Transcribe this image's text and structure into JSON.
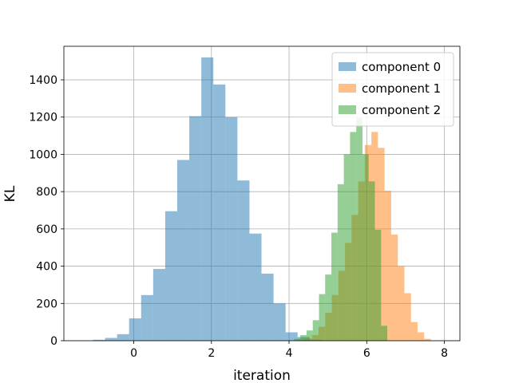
{
  "chart_data": {
    "type": "bar",
    "subtype": "overlapping-histogram",
    "title": "",
    "xlabel": "iteration",
    "ylabel": "KL",
    "xlim": [
      -1.8,
      8.4
    ],
    "ylim": [
      0,
      1580
    ],
    "xticks": [
      "0",
      "2",
      "4",
      "6",
      "8"
    ],
    "yticks": [
      "0",
      "200",
      "400",
      "600",
      "800",
      "1000",
      "1200",
      "1400"
    ],
    "grid": true,
    "legend_position": "top-right",
    "series": [
      {
        "name": "component 0",
        "color": "#1f77b4",
        "opacity": 0.5,
        "bin_edges": [
          -1.05,
          -0.74,
          -0.43,
          -0.12,
          0.19,
          0.5,
          0.81,
          1.12,
          1.43,
          1.74,
          2.05,
          2.36,
          2.67,
          2.98,
          3.29,
          3.6,
          3.91,
          4.22,
          4.53,
          4.84
        ],
        "counts": [
          5,
          15,
          35,
          120,
          245,
          385,
          695,
          970,
          1205,
          1520,
          1375,
          1200,
          860,
          575,
          360,
          200,
          45,
          20,
          5
        ]
      },
      {
        "name": "component 1",
        "color": "#ff7f0e",
        "opacity": 0.5,
        "bin_edges": [
          4.25,
          4.42,
          4.59,
          4.76,
          4.93,
          5.1,
          5.27,
          5.44,
          5.61,
          5.78,
          5.95,
          6.12,
          6.29,
          6.46,
          6.63,
          6.8,
          6.97,
          7.14,
          7.31,
          7.48,
          7.65
        ],
        "counts": [
          5,
          12,
          30,
          75,
          150,
          245,
          375,
          525,
          675,
          855,
          1050,
          1120,
          1035,
          805,
          570,
          400,
          255,
          100,
          45,
          10
        ]
      },
      {
        "name": "component 2",
        "color": "#2ca02c",
        "opacity": 0.5,
        "bin_edges": [
          4.13,
          4.29,
          4.45,
          4.61,
          4.77,
          4.93,
          5.09,
          5.25,
          5.41,
          5.57,
          5.73,
          5.89,
          6.05,
          6.21,
          6.37,
          6.53
        ],
        "counts": [
          10,
          30,
          55,
          110,
          250,
          355,
          580,
          840,
          1000,
          1120,
          1195,
          1000,
          855,
          595,
          80
        ]
      }
    ]
  }
}
